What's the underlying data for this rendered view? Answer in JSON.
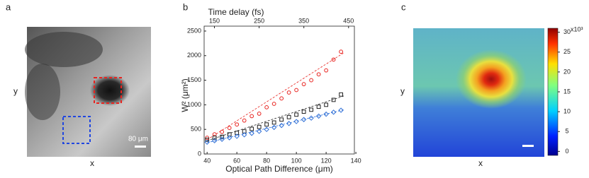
{
  "panel_a": {
    "label": "a",
    "y_label": "y",
    "x_label": "x",
    "scale_bar": "80 μm"
  },
  "chart_data": {
    "type": "scatter",
    "panel_label": "b",
    "x_label": "Optical Path Difference (μm)",
    "y_label": "W² (μm²)",
    "x2_label": "Time delay (fs)",
    "xlim": [
      38,
      139
    ],
    "xticks": [
      40,
      60,
      80,
      100,
      120,
      140
    ],
    "ylim": [
      0,
      2600
    ],
    "yticks": [
      0,
      500,
      1000,
      1500,
      2000,
      2500
    ],
    "x2lim": [
      127,
      463
    ],
    "x2ticks": [
      150,
      250,
      350,
      450
    ],
    "x": [
      40,
      45,
      50,
      55,
      60,
      65,
      70,
      75,
      80,
      85,
      90,
      95,
      100,
      105,
      110,
      115,
      120,
      125,
      130
    ],
    "series": [
      {
        "color": "#e8231f",
        "marker": "circle",
        "values": [
          330,
          400,
          450,
          530,
          600,
          680,
          770,
          820,
          950,
          1020,
          1130,
          1250,
          1300,
          1420,
          1500,
          1620,
          1700,
          1920,
          2080
        ],
        "fit": {
          "x": [
            40,
            132
          ],
          "values": [
            290,
            2060
          ]
        }
      },
      {
        "color": "#222222",
        "marker": "square",
        "values": [
          290,
          330,
          350,
          400,
          430,
          460,
          510,
          550,
          600,
          640,
          700,
          750,
          800,
          860,
          900,
          960,
          1000,
          1100,
          1210
        ],
        "fit": {
          "x": [
            40,
            132
          ],
          "values": [
            270,
            1180
          ]
        }
      },
      {
        "color": "#2f6fd6",
        "marker": "diamond",
        "values": [
          240,
          270,
          300,
          330,
          360,
          390,
          420,
          460,
          500,
          540,
          580,
          620,
          660,
          700,
          730,
          770,
          810,
          850,
          890
        ],
        "fit": {
          "x": [
            40,
            132
          ],
          "values": [
            230,
            900
          ]
        }
      }
    ]
  },
  "panel_c": {
    "label": "c",
    "y_label": "y",
    "x_label": "x",
    "colorbar": {
      "lim": [
        -1,
        31
      ],
      "ticks": [
        0,
        5,
        10,
        15,
        20,
        25,
        30
      ],
      "exponent_label": "x10³"
    }
  }
}
